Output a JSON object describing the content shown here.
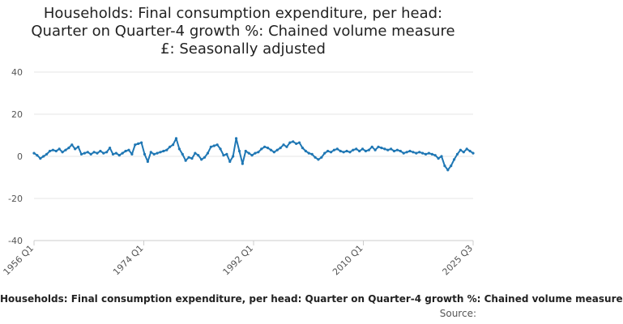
{
  "chart_data": {
    "type": "line",
    "title_lines": [
      "Households: Final consumption expenditure, per head:",
      "Quarter on Quarter-4 growth %: Chained volume measure",
      "£: Seasonally adjusted"
    ],
    "ylim": [
      -40,
      40
    ],
    "yticks": [
      "40",
      "20",
      "0",
      "-20",
      "-40"
    ],
    "xticks": [
      "1956 Q1",
      "1974 Q1",
      "1992 Q1",
      "2010 Q1",
      "2025 Q3"
    ],
    "x_range": [
      1956.0,
      2025.5
    ],
    "grid": true,
    "series": [
      {
        "name": "Households: Final consumption expenditure, per head: Quarter on Quarter-4 growth %: Chained volume measure",
        "color": "#1f77b4",
        "points": [
          [
            1956.0,
            1.5
          ],
          [
            1956.5,
            0.5
          ],
          [
            1957.0,
            -1.0
          ],
          [
            1957.5,
            0.0
          ],
          [
            1958.0,
            1.0
          ],
          [
            1958.5,
            2.5
          ],
          [
            1959.0,
            3.0
          ],
          [
            1959.5,
            2.5
          ],
          [
            1960.0,
            3.5
          ],
          [
            1960.5,
            2.0
          ],
          [
            1961.0,
            3.0
          ],
          [
            1961.5,
            4.0
          ],
          [
            1962.0,
            5.5
          ],
          [
            1962.5,
            3.5
          ],
          [
            1963.0,
            4.5
          ],
          [
            1963.5,
            1.0
          ],
          [
            1964.0,
            1.5
          ],
          [
            1964.5,
            2.0
          ],
          [
            1965.0,
            1.0
          ],
          [
            1965.5,
            2.0
          ],
          [
            1966.0,
            1.5
          ],
          [
            1966.5,
            2.5
          ],
          [
            1967.0,
            1.5
          ],
          [
            1967.5,
            2.0
          ],
          [
            1968.0,
            4.0
          ],
          [
            1968.5,
            1.0
          ],
          [
            1969.0,
            1.5
          ],
          [
            1969.5,
            0.5
          ],
          [
            1970.0,
            1.5
          ],
          [
            1970.5,
            2.5
          ],
          [
            1971.0,
            3.0
          ],
          [
            1971.5,
            1.0
          ],
          [
            1972.0,
            5.5
          ],
          [
            1972.5,
            6.0
          ],
          [
            1973.0,
            6.5
          ],
          [
            1973.5,
            1.0
          ],
          [
            1974.0,
            -2.5
          ],
          [
            1974.5,
            2.0
          ],
          [
            1975.0,
            1.0
          ],
          [
            1975.5,
            1.5
          ],
          [
            1976.0,
            2.0
          ],
          [
            1976.5,
            2.5
          ],
          [
            1977.0,
            3.0
          ],
          [
            1977.5,
            4.5
          ],
          [
            1978.0,
            5.5
          ],
          [
            1978.5,
            8.5
          ],
          [
            1979.0,
            3.5
          ],
          [
            1979.5,
            1.0
          ],
          [
            1980.0,
            -2.0
          ],
          [
            1980.5,
            -0.5
          ],
          [
            1981.0,
            -1.0
          ],
          [
            1981.5,
            1.5
          ],
          [
            1982.0,
            0.5
          ],
          [
            1982.5,
            -1.5
          ],
          [
            1983.0,
            -0.5
          ],
          [
            1983.5,
            1.5
          ],
          [
            1984.0,
            4.5
          ],
          [
            1984.5,
            5.0
          ],
          [
            1985.0,
            5.5
          ],
          [
            1985.5,
            3.5
          ],
          [
            1986.0,
            0.5
          ],
          [
            1986.5,
            1.0
          ],
          [
            1987.0,
            -2.5
          ],
          [
            1987.5,
            0.0
          ],
          [
            1988.0,
            8.5
          ],
          [
            1988.5,
            2.5
          ],
          [
            1989.0,
            -3.5
          ],
          [
            1989.5,
            2.5
          ],
          [
            1990.0,
            1.5
          ],
          [
            1990.5,
            0.5
          ],
          [
            1991.0,
            1.5
          ],
          [
            1991.5,
            2.0
          ],
          [
            1992.0,
            3.5
          ],
          [
            1992.5,
            4.5
          ],
          [
            1993.0,
            4.0
          ],
          [
            1993.5,
            3.0
          ],
          [
            1994.0,
            2.0
          ],
          [
            1994.5,
            3.0
          ],
          [
            1995.0,
            4.0
          ],
          [
            1995.5,
            5.5
          ],
          [
            1996.0,
            4.5
          ],
          [
            1996.5,
            6.5
          ],
          [
            1997.0,
            7.0
          ],
          [
            1997.5,
            6.0
          ],
          [
            1998.0,
            6.5
          ],
          [
            1998.5,
            4.0
          ],
          [
            1999.0,
            2.5
          ],
          [
            1999.5,
            1.5
          ],
          [
            2000.0,
            1.0
          ],
          [
            2000.5,
            -0.5
          ],
          [
            2001.0,
            -1.5
          ],
          [
            2001.5,
            -0.5
          ],
          [
            2002.0,
            1.5
          ],
          [
            2002.5,
            2.5
          ],
          [
            2003.0,
            2.0
          ],
          [
            2003.5,
            3.0
          ],
          [
            2004.0,
            3.5
          ],
          [
            2004.5,
            2.5
          ],
          [
            2005.0,
            2.0
          ],
          [
            2005.5,
            2.5
          ],
          [
            2006.0,
            2.0
          ],
          [
            2006.5,
            3.0
          ],
          [
            2007.0,
            3.5
          ],
          [
            2007.5,
            2.5
          ],
          [
            2008.0,
            3.5
          ],
          [
            2008.5,
            2.5
          ],
          [
            2009.0,
            3.0
          ],
          [
            2009.5,
            4.5
          ],
          [
            2010.0,
            3.0
          ],
          [
            2010.5,
            4.5
          ],
          [
            2011.0,
            4.0
          ],
          [
            2011.5,
            3.5
          ],
          [
            2012.0,
            3.0
          ],
          [
            2012.5,
            3.5
          ],
          [
            2013.0,
            2.5
          ],
          [
            2013.5,
            3.0
          ],
          [
            2014.0,
            2.5
          ],
          [
            2014.5,
            1.5
          ],
          [
            2015.0,
            2.0
          ],
          [
            2015.5,
            2.5
          ],
          [
            2016.0,
            2.0
          ],
          [
            2016.5,
            1.5
          ],
          [
            2017.0,
            2.0
          ],
          [
            2017.5,
            1.5
          ],
          [
            2018.0,
            1.0
          ],
          [
            2018.5,
            1.5
          ],
          [
            2019.0,
            1.0
          ],
          [
            2019.5,
            0.5
          ],
          [
            2020.0,
            -1.0
          ],
          [
            2020.5,
            0.0
          ],
          [
            2021.0,
            -4.5
          ],
          [
            2021.5,
            -6.5
          ],
          [
            2022.0,
            -4.5
          ],
          [
            2022.5,
            -1.5
          ],
          [
            2023.0,
            1.0
          ],
          [
            2023.5,
            3.0
          ],
          [
            2024.0,
            2.0
          ],
          [
            2024.5,
            3.5
          ],
          [
            2025.0,
            2.5
          ],
          [
            2025.5,
            1.5
          ]
        ]
      }
    ]
  },
  "footer": {
    "legend_label": "Households: Final consumption expenditure, per head: Quarter on Quarter-4 growth %: Chained volume measure",
    "source": "Source:"
  }
}
